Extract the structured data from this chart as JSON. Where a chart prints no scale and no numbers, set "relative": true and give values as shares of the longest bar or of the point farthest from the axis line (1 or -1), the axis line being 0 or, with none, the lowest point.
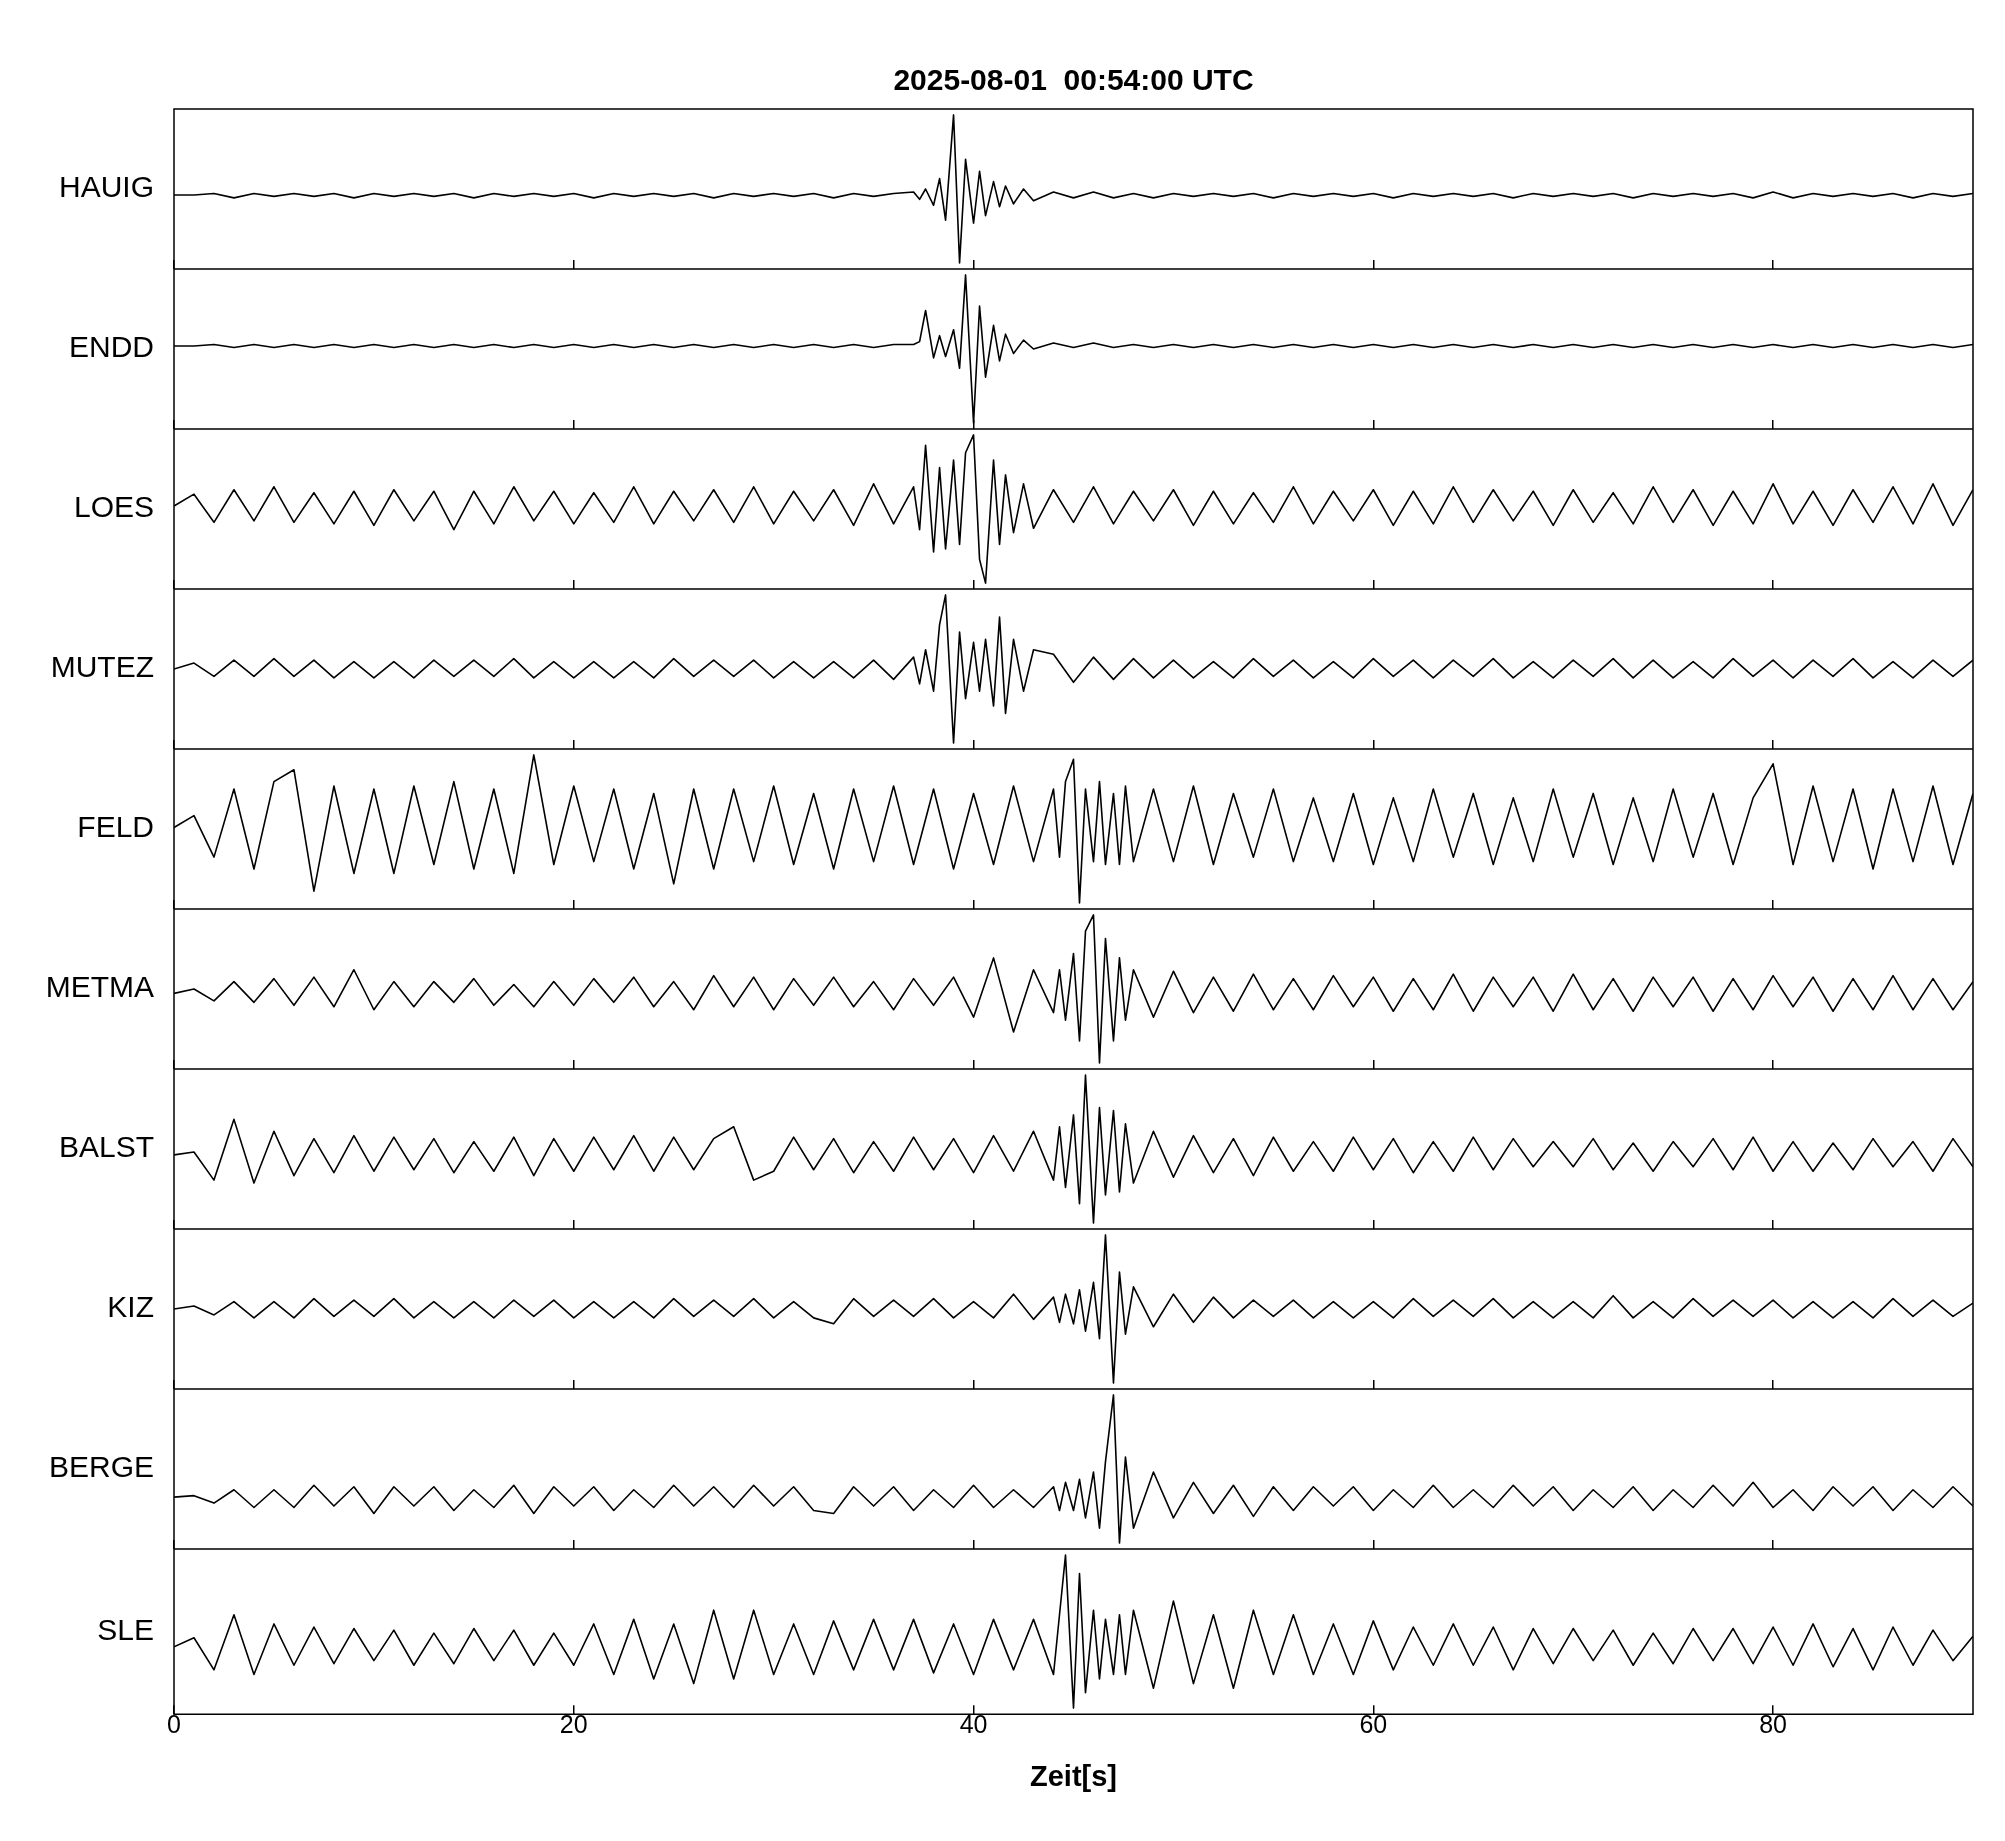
{
  "chart_data": [
    {
      "type": "line",
      "title": "2025-08-01  00:54:00 UTC",
      "ylabel": "HAUIG",
      "color": "#000000",
      "relative": true,
      "xlim": [
        0,
        90
      ],
      "xticks": [
        0,
        20,
        40,
        60,
        80
      ],
      "tick_labels": false,
      "x": [
        0,
        1,
        2,
        3,
        4,
        5,
        6,
        7,
        8,
        9,
        10,
        11,
        12,
        13,
        14,
        15,
        16,
        17,
        18,
        19,
        20,
        21,
        22,
        23,
        24,
        25,
        26,
        27,
        28,
        29,
        30,
        31,
        32,
        33,
        34,
        35,
        36,
        37,
        37.3,
        37.6,
        38,
        38.3,
        38.6,
        39,
        39.3,
        39.6,
        40,
        40.3,
        40.6,
        41,
        41.3,
        41.6,
        42,
        42.5,
        43,
        44,
        45,
        46,
        47,
        48,
        49,
        50,
        51,
        52,
        53,
        54,
        55,
        56,
        57,
        58,
        59,
        60,
        61,
        62,
        63,
        64,
        65,
        66,
        67,
        68,
        69,
        70,
        71,
        72,
        73,
        74,
        75,
        76,
        77,
        78,
        79,
        80,
        81,
        82,
        83,
        84,
        85,
        86,
        87,
        88,
        89,
        90
      ],
      "values": [
        0.46,
        0.46,
        0.47,
        0.44,
        0.47,
        0.45,
        0.47,
        0.45,
        0.47,
        0.44,
        0.47,
        0.45,
        0.47,
        0.45,
        0.47,
        0.44,
        0.47,
        0.45,
        0.47,
        0.45,
        0.47,
        0.44,
        0.47,
        0.45,
        0.47,
        0.45,
        0.47,
        0.44,
        0.47,
        0.45,
        0.47,
        0.45,
        0.47,
        0.44,
        0.47,
        0.45,
        0.47,
        0.48,
        0.43,
        0.5,
        0.39,
        0.57,
        0.29,
        1,
        0,
        0.7,
        0.27,
        0.62,
        0.32,
        0.55,
        0.38,
        0.52,
        0.4,
        0.5,
        0.42,
        0.48,
        0.44,
        0.48,
        0.44,
        0.47,
        0.44,
        0.47,
        0.45,
        0.47,
        0.45,
        0.47,
        0.44,
        0.47,
        0.45,
        0.47,
        0.45,
        0.47,
        0.44,
        0.47,
        0.45,
        0.47,
        0.45,
        0.47,
        0.44,
        0.47,
        0.45,
        0.47,
        0.45,
        0.47,
        0.44,
        0.47,
        0.45,
        0.47,
        0.45,
        0.47,
        0.44,
        0.48,
        0.44,
        0.47,
        0.45,
        0.47,
        0.45,
        0.47,
        0.44,
        0.47,
        0.45,
        0.47
      ]
    },
    {
      "type": "line",
      "ylabel": "ENDD",
      "color": "#000000",
      "relative": true,
      "xlim": [
        0,
        90
      ],
      "xticks": [
        0,
        20,
        40,
        60,
        80
      ],
      "tick_labels": false,
      "x": [
        0,
        1,
        2,
        3,
        4,
        5,
        6,
        7,
        8,
        9,
        10,
        11,
        12,
        13,
        14,
        15,
        16,
        17,
        18,
        19,
        20,
        21,
        22,
        23,
        24,
        25,
        26,
        27,
        28,
        29,
        30,
        31,
        32,
        33,
        34,
        35,
        36,
        37,
        37.3,
        37.6,
        38,
        38.3,
        38.6,
        39,
        39.3,
        39.6,
        40,
        40.3,
        40.6,
        41,
        41.3,
        41.6,
        42,
        42.5,
        43,
        44,
        45,
        46,
        47,
        48,
        49,
        50,
        51,
        52,
        53,
        54,
        55,
        56,
        57,
        58,
        59,
        60,
        61,
        62,
        63,
        64,
        65,
        66,
        67,
        68,
        69,
        70,
        71,
        72,
        73,
        74,
        75,
        76,
        77,
        78,
        79,
        80,
        81,
        82,
        83,
        84,
        85,
        86,
        87,
        88,
        89,
        90
      ],
      "values": [
        0.52,
        0.52,
        0.53,
        0.51,
        0.53,
        0.51,
        0.53,
        0.51,
        0.53,
        0.51,
        0.53,
        0.51,
        0.53,
        0.51,
        0.53,
        0.51,
        0.53,
        0.51,
        0.53,
        0.51,
        0.53,
        0.51,
        0.53,
        0.51,
        0.53,
        0.51,
        0.53,
        0.51,
        0.53,
        0.51,
        0.53,
        0.51,
        0.53,
        0.51,
        0.53,
        0.51,
        0.53,
        0.53,
        0.55,
        0.76,
        0.44,
        0.59,
        0.45,
        0.63,
        0.37,
        1,
        0,
        0.79,
        0.31,
        0.66,
        0.42,
        0.6,
        0.47,
        0.56,
        0.5,
        0.54,
        0.51,
        0.54,
        0.51,
        0.53,
        0.51,
        0.53,
        0.51,
        0.53,
        0.51,
        0.53,
        0.51,
        0.53,
        0.51,
        0.53,
        0.51,
        0.53,
        0.51,
        0.53,
        0.51,
        0.53,
        0.51,
        0.53,
        0.51,
        0.53,
        0.51,
        0.53,
        0.51,
        0.53,
        0.51,
        0.53,
        0.51,
        0.53,
        0.51,
        0.53,
        0.51,
        0.53,
        0.51,
        0.53,
        0.51,
        0.53,
        0.51,
        0.53,
        0.51,
        0.53,
        0.51,
        0.53
      ]
    },
    {
      "type": "line",
      "ylabel": "LOES",
      "color": "#000000",
      "relative": true,
      "xlim": [
        0,
        90
      ],
      "xticks": [
        0,
        20,
        40,
        60,
        80
      ],
      "tick_labels": false,
      "x": [
        0,
        1,
        2,
        3,
        4,
        5,
        6,
        7,
        8,
        9,
        10,
        11,
        12,
        13,
        14,
        15,
        16,
        17,
        18,
        19,
        20,
        21,
        22,
        23,
        24,
        25,
        26,
        27,
        28,
        29,
        30,
        31,
        32,
        33,
        34,
        35,
        36,
        37,
        37.3,
        37.6,
        38,
        38.3,
        38.6,
        39,
        39.3,
        39.6,
        40,
        40.3,
        40.6,
        41,
        41.3,
        41.6,
        42,
        42.5,
        43,
        44,
        45,
        46,
        47,
        48,
        49,
        50,
        51,
        52,
        53,
        54,
        55,
        56,
        57,
        58,
        59,
        60,
        61,
        62,
        63,
        64,
        65,
        66,
        67,
        68,
        69,
        70,
        71,
        72,
        73,
        74,
        75,
        76,
        77,
        78,
        79,
        80,
        81,
        82,
        83,
        84,
        85,
        86,
        87,
        88,
        89,
        90
      ],
      "values": [
        0.52,
        0.6,
        0.41,
        0.63,
        0.42,
        0.65,
        0.41,
        0.61,
        0.4,
        0.62,
        0.39,
        0.63,
        0.42,
        0.62,
        0.36,
        0.62,
        0.4,
        0.65,
        0.42,
        0.62,
        0.4,
        0.61,
        0.41,
        0.65,
        0.4,
        0.62,
        0.42,
        0.63,
        0.41,
        0.65,
        0.4,
        0.62,
        0.42,
        0.63,
        0.39,
        0.67,
        0.4,
        0.65,
        0.36,
        0.93,
        0.21,
        0.78,
        0.23,
        0.83,
        0.26,
        0.88,
        1,
        0.16,
        0,
        0.83,
        0.26,
        0.73,
        0.34,
        0.67,
        0.37,
        0.63,
        0.41,
        0.65,
        0.4,
        0.62,
        0.42,
        0.63,
        0.39,
        0.62,
        0.4,
        0.61,
        0.41,
        0.65,
        0.4,
        0.62,
        0.42,
        0.63,
        0.39,
        0.62,
        0.4,
        0.65,
        0.41,
        0.63,
        0.42,
        0.62,
        0.39,
        0.63,
        0.41,
        0.61,
        0.4,
        0.65,
        0.41,
        0.63,
        0.39,
        0.62,
        0.4,
        0.67,
        0.4,
        0.62,
        0.39,
        0.63,
        0.41,
        0.65,
        0.4,
        0.67,
        0.39,
        0.63
      ]
    },
    {
      "type": "line",
      "ylabel": "MUTEZ",
      "color": "#000000",
      "relative": true,
      "xlim": [
        0,
        90
      ],
      "xticks": [
        0,
        20,
        40,
        60,
        80
      ],
      "tick_labels": false,
      "x": [
        0,
        1,
        2,
        3,
        4,
        5,
        6,
        7,
        8,
        9,
        10,
        11,
        12,
        13,
        14,
        15,
        16,
        17,
        18,
        19,
        20,
        21,
        22,
        23,
        24,
        25,
        26,
        27,
        28,
        29,
        30,
        31,
        32,
        33,
        34,
        35,
        36,
        37,
        37.3,
        37.6,
        38,
        38.3,
        38.6,
        39,
        39.3,
        39.6,
        40,
        40.3,
        40.6,
        41,
        41.3,
        41.6,
        42,
        42.5,
        43,
        44,
        45,
        46,
        47,
        48,
        49,
        50,
        51,
        52,
        53,
        54,
        55,
        56,
        57,
        58,
        59,
        60,
        61,
        62,
        63,
        64,
        65,
        66,
        67,
        68,
        69,
        70,
        71,
        72,
        73,
        74,
        75,
        76,
        77,
        78,
        79,
        80,
        81,
        82,
        83,
        84,
        85,
        86,
        87,
        88,
        89,
        90
      ],
      "values": [
        0.5,
        0.54,
        0.45,
        0.56,
        0.45,
        0.57,
        0.45,
        0.56,
        0.44,
        0.55,
        0.44,
        0.55,
        0.44,
        0.56,
        0.45,
        0.56,
        0.45,
        0.57,
        0.44,
        0.55,
        0.44,
        0.55,
        0.44,
        0.55,
        0.44,
        0.57,
        0.45,
        0.56,
        0.45,
        0.56,
        0.44,
        0.55,
        0.44,
        0.55,
        0.44,
        0.56,
        0.43,
        0.58,
        0.4,
        0.63,
        0.35,
        0.8,
        1,
        0,
        0.75,
        0.3,
        0.68,
        0.35,
        0.7,
        0.25,
        0.85,
        0.2,
        0.7,
        0.35,
        0.63,
        0.6,
        0.41,
        0.58,
        0.43,
        0.57,
        0.44,
        0.56,
        0.44,
        0.55,
        0.44,
        0.57,
        0.45,
        0.56,
        0.44,
        0.55,
        0.44,
        0.57,
        0.45,
        0.56,
        0.44,
        0.56,
        0.45,
        0.57,
        0.44,
        0.55,
        0.44,
        0.56,
        0.45,
        0.57,
        0.44,
        0.56,
        0.44,
        0.55,
        0.44,
        0.57,
        0.45,
        0.56,
        0.44,
        0.56,
        0.45,
        0.57,
        0.44,
        0.55,
        0.44,
        0.56,
        0.45,
        0.56
      ]
    },
    {
      "type": "line",
      "ylabel": "FELD",
      "color": "#000000",
      "relative": true,
      "xlim": [
        0,
        90
      ],
      "xticks": [
        0,
        20,
        40,
        60,
        80
      ],
      "tick_labels": false,
      "x": [
        0,
        1,
        2,
        3,
        4,
        5,
        6,
        7,
        8,
        9,
        10,
        11,
        12,
        13,
        14,
        15,
        16,
        17,
        18,
        19,
        20,
        21,
        22,
        23,
        24,
        25,
        26,
        27,
        28,
        29,
        30,
        31,
        32,
        33,
        34,
        35,
        36,
        37,
        38,
        39,
        40,
        41,
        42,
        43,
        44,
        44.3,
        44.6,
        45,
        45.3,
        45.6,
        46,
        46.3,
        46.6,
        47,
        47.3,
        47.6,
        48,
        49,
        50,
        51,
        52,
        53,
        54,
        55,
        56,
        57,
        58,
        59,
        60,
        61,
        62,
        63,
        64,
        65,
        66,
        67,
        68,
        69,
        70,
        71,
        72,
        73,
        74,
        75,
        76,
        77,
        78,
        79,
        80,
        81,
        82,
        83,
        84,
        85,
        86,
        87,
        88,
        89,
        90
      ],
      "values": [
        0.51,
        0.59,
        0.31,
        0.77,
        0.23,
        0.82,
        0.9,
        0.08,
        0.79,
        0.2,
        0.77,
        0.2,
        0.79,
        0.26,
        0.82,
        0.23,
        0.77,
        0.2,
        1,
        0.26,
        0.79,
        0.28,
        0.77,
        0.23,
        0.74,
        0.13,
        0.77,
        0.23,
        0.77,
        0.28,
        0.79,
        0.26,
        0.74,
        0.23,
        0.77,
        0.28,
        0.79,
        0.26,
        0.77,
        0.23,
        0.74,
        0.26,
        0.79,
        0.28,
        0.77,
        0.31,
        0.82,
        0.97,
        0,
        0.77,
        0.28,
        0.82,
        0.26,
        0.74,
        0.26,
        0.79,
        0.28,
        0.77,
        0.28,
        0.79,
        0.26,
        0.74,
        0.31,
        0.77,
        0.28,
        0.71,
        0.28,
        0.74,
        0.26,
        0.71,
        0.28,
        0.77,
        0.31,
        0.74,
        0.26,
        0.71,
        0.28,
        0.77,
        0.31,
        0.74,
        0.26,
        0.71,
        0.28,
        0.77,
        0.31,
        0.74,
        0.26,
        0.71,
        0.94,
        0.26,
        0.79,
        0.28,
        0.77,
        0.23,
        0.77,
        0.28,
        0.79,
        0.26,
        0.74
      ]
    },
    {
      "type": "line",
      "ylabel": "METMA",
      "color": "#000000",
      "relative": true,
      "xlim": [
        0,
        90
      ],
      "xticks": [
        0,
        20,
        40,
        60,
        80
      ],
      "tick_labels": false,
      "x": [
        0,
        1,
        2,
        3,
        4,
        5,
        6,
        7,
        8,
        9,
        10,
        11,
        12,
        13,
        14,
        15,
        16,
        17,
        18,
        19,
        20,
        21,
        22,
        23,
        24,
        25,
        26,
        27,
        28,
        29,
        30,
        31,
        32,
        33,
        34,
        35,
        36,
        37,
        38,
        39,
        40,
        41,
        42,
        43,
        44,
        44.3,
        44.6,
        45,
        45.3,
        45.6,
        46,
        46.3,
        46.6,
        47,
        47.3,
        47.6,
        48,
        49,
        50,
        51,
        52,
        53,
        54,
        55,
        56,
        57,
        58,
        59,
        60,
        61,
        62,
        63,
        64,
        65,
        66,
        67,
        68,
        69,
        70,
        71,
        72,
        73,
        74,
        75,
        76,
        77,
        78,
        79,
        80,
        81,
        82,
        83,
        84,
        85,
        86,
        87,
        88,
        89,
        90
      ],
      "values": [
        0.47,
        0.5,
        0.42,
        0.55,
        0.41,
        0.57,
        0.39,
        0.58,
        0.38,
        0.63,
        0.36,
        0.55,
        0.38,
        0.55,
        0.41,
        0.57,
        0.39,
        0.53,
        0.38,
        0.55,
        0.39,
        0.57,
        0.41,
        0.58,
        0.38,
        0.55,
        0.36,
        0.59,
        0.38,
        0.58,
        0.36,
        0.57,
        0.39,
        0.58,
        0.38,
        0.55,
        0.36,
        0.57,
        0.39,
        0.58,
        0.31,
        0.71,
        0.21,
        0.63,
        0.34,
        0.63,
        0.29,
        0.74,
        0.15,
        0.89,
        1,
        0,
        0.84,
        0.15,
        0.71,
        0.29,
        0.63,
        0.31,
        0.62,
        0.34,
        0.58,
        0.35,
        0.6,
        0.36,
        0.57,
        0.36,
        0.59,
        0.38,
        0.58,
        0.35,
        0.57,
        0.36,
        0.6,
        0.35,
        0.58,
        0.38,
        0.58,
        0.35,
        0.6,
        0.36,
        0.57,
        0.35,
        0.58,
        0.38,
        0.58,
        0.35,
        0.57,
        0.36,
        0.59,
        0.38,
        0.58,
        0.35,
        0.57,
        0.36,
        0.59,
        0.36,
        0.57,
        0.36,
        0.55
      ]
    },
    {
      "type": "line",
      "ylabel": "BALST",
      "color": "#000000",
      "relative": true,
      "xlim": [
        0,
        90
      ],
      "xticks": [
        0,
        20,
        40,
        60,
        80
      ],
      "tick_labels": false,
      "x": [
        0,
        1,
        2,
        3,
        4,
        5,
        6,
        7,
        8,
        9,
        10,
        11,
        12,
        13,
        14,
        15,
        16,
        17,
        18,
        19,
        20,
        21,
        22,
        23,
        24,
        25,
        26,
        27,
        28,
        29,
        30,
        31,
        32,
        33,
        34,
        35,
        36,
        37,
        38,
        39,
        40,
        41,
        42,
        43,
        44,
        44.3,
        44.6,
        45,
        45.3,
        45.6,
        46,
        46.3,
        46.6,
        47,
        47.3,
        47.6,
        48,
        49,
        50,
        51,
        52,
        53,
        54,
        55,
        56,
        57,
        58,
        59,
        60,
        61,
        62,
        63,
        64,
        65,
        66,
        67,
        68,
        69,
        70,
        71,
        72,
        73,
        74,
        75,
        76,
        77,
        78,
        79,
        80,
        81,
        82,
        83,
        84,
        85,
        86,
        87,
        88,
        89,
        90
      ],
      "values": [
        0.46,
        0.48,
        0.29,
        0.7,
        0.27,
        0.62,
        0.32,
        0.57,
        0.34,
        0.59,
        0.35,
        0.58,
        0.36,
        0.57,
        0.34,
        0.55,
        0.35,
        0.58,
        0.32,
        0.57,
        0.35,
        0.58,
        0.36,
        0.59,
        0.35,
        0.58,
        0.36,
        0.57,
        0.65,
        0.29,
        0.35,
        0.58,
        0.36,
        0.57,
        0.34,
        0.55,
        0.35,
        0.58,
        0.36,
        0.57,
        0.34,
        0.59,
        0.35,
        0.62,
        0.29,
        0.65,
        0.24,
        0.73,
        0.13,
        1,
        0,
        0.78,
        0.19,
        0.76,
        0.21,
        0.67,
        0.27,
        0.62,
        0.31,
        0.59,
        0.34,
        0.57,
        0.32,
        0.58,
        0.35,
        0.55,
        0.35,
        0.58,
        0.36,
        0.57,
        0.34,
        0.55,
        0.35,
        0.58,
        0.36,
        0.57,
        0.38,
        0.55,
        0.38,
        0.57,
        0.36,
        0.54,
        0.35,
        0.55,
        0.38,
        0.57,
        0.36,
        0.58,
        0.35,
        0.55,
        0.35,
        0.54,
        0.36,
        0.57,
        0.38,
        0.55,
        0.35,
        0.57,
        0.38
      ]
    },
    {
      "type": "line",
      "ylabel": "KIZ",
      "color": "#000000",
      "relative": true,
      "xlim": [
        0,
        90
      ],
      "xticks": [
        0,
        20,
        40,
        60,
        80
      ],
      "tick_labels": false,
      "x": [
        0,
        1,
        2,
        3,
        4,
        5,
        6,
        7,
        8,
        9,
        10,
        11,
        12,
        13,
        14,
        15,
        16,
        17,
        18,
        19,
        20,
        21,
        22,
        23,
        24,
        25,
        26,
        27,
        28,
        29,
        30,
        31,
        32,
        33,
        34,
        35,
        36,
        37,
        38,
        39,
        40,
        41,
        42,
        43,
        44,
        44.3,
        44.6,
        45,
        45.3,
        45.6,
        46,
        46.3,
        46.6,
        47,
        47.3,
        47.6,
        48,
        49,
        50,
        51,
        52,
        53,
        54,
        55,
        56,
        57,
        58,
        59,
        60,
        61,
        62,
        63,
        64,
        65,
        66,
        67,
        68,
        69,
        70,
        71,
        72,
        73,
        74,
        75,
        76,
        77,
        78,
        79,
        80,
        81,
        82,
        83,
        84,
        85,
        86,
        87,
        88,
        89,
        90
      ],
      "values": [
        0.5,
        0.52,
        0.46,
        0.55,
        0.44,
        0.55,
        0.44,
        0.57,
        0.45,
        0.56,
        0.45,
        0.57,
        0.44,
        0.55,
        0.44,
        0.55,
        0.44,
        0.56,
        0.45,
        0.56,
        0.44,
        0.55,
        0.44,
        0.55,
        0.44,
        0.57,
        0.45,
        0.56,
        0.45,
        0.57,
        0.44,
        0.55,
        0.44,
        0.4,
        0.57,
        0.45,
        0.56,
        0.45,
        0.57,
        0.44,
        0.55,
        0.44,
        0.6,
        0.43,
        0.58,
        0.41,
        0.6,
        0.4,
        0.63,
        0.35,
        0.68,
        0.3,
        1,
        0,
        0.75,
        0.33,
        0.65,
        0.38,
        0.6,
        0.41,
        0.58,
        0.44,
        0.56,
        0.45,
        0.56,
        0.44,
        0.55,
        0.44,
        0.55,
        0.44,
        0.57,
        0.45,
        0.56,
        0.45,
        0.57,
        0.44,
        0.55,
        0.44,
        0.55,
        0.44,
        0.59,
        0.44,
        0.55,
        0.44,
        0.57,
        0.45,
        0.56,
        0.45,
        0.56,
        0.44,
        0.55,
        0.44,
        0.55,
        0.44,
        0.57,
        0.45,
        0.56,
        0.45,
        0.54
      ]
    },
    {
      "type": "line",
      "ylabel": "BERGE",
      "color": "#000000",
      "relative": true,
      "xlim": [
        0,
        90
      ],
      "xticks": [
        0,
        20,
        40,
        60,
        80
      ],
      "tick_labels": false,
      "x": [
        0,
        1,
        2,
        3,
        4,
        5,
        6,
        7,
        8,
        9,
        10,
        11,
        12,
        13,
        14,
        15,
        16,
        17,
        18,
        19,
        20,
        21,
        22,
        23,
        24,
        25,
        26,
        27,
        28,
        29,
        30,
        31,
        32,
        33,
        34,
        35,
        36,
        37,
        38,
        39,
        40,
        41,
        42,
        43,
        44,
        44.3,
        44.6,
        45,
        45.3,
        45.6,
        46,
        46.3,
        46.6,
        47,
        47.3,
        47.6,
        48,
        49,
        50,
        51,
        52,
        53,
        54,
        55,
        56,
        57,
        58,
        59,
        60,
        61,
        62,
        63,
        64,
        65,
        66,
        67,
        68,
        69,
        70,
        71,
        72,
        73,
        74,
        75,
        76,
        77,
        78,
        79,
        80,
        81,
        82,
        83,
        84,
        85,
        86,
        87,
        88,
        89,
        90
      ],
      "values": [
        0.31,
        0.32,
        0.27,
        0.36,
        0.24,
        0.36,
        0.24,
        0.39,
        0.25,
        0.38,
        0.2,
        0.38,
        0.25,
        0.38,
        0.22,
        0.36,
        0.24,
        0.39,
        0.2,
        0.38,
        0.25,
        0.38,
        0.22,
        0.36,
        0.24,
        0.39,
        0.25,
        0.38,
        0.24,
        0.39,
        0.25,
        0.38,
        0.22,
        0.2,
        0.38,
        0.25,
        0.38,
        0.22,
        0.36,
        0.24,
        0.39,
        0.24,
        0.36,
        0.24,
        0.38,
        0.22,
        0.41,
        0.22,
        0.43,
        0.17,
        0.48,
        0.1,
        0.55,
        1,
        0,
        0.58,
        0.1,
        0.48,
        0.17,
        0.41,
        0.2,
        0.39,
        0.18,
        0.38,
        0.22,
        0.38,
        0.25,
        0.38,
        0.22,
        0.36,
        0.24,
        0.39,
        0.24,
        0.36,
        0.24,
        0.39,
        0.25,
        0.38,
        0.22,
        0.36,
        0.24,
        0.38,
        0.22,
        0.36,
        0.24,
        0.39,
        0.25,
        0.41,
        0.24,
        0.36,
        0.22,
        0.38,
        0.25,
        0.38,
        0.22,
        0.36,
        0.24,
        0.38,
        0.25
      ]
    },
    {
      "type": "line",
      "ylabel": "SLE",
      "xlabel": "Zeit[s]",
      "color": "#000000",
      "relative": true,
      "xlim": [
        0,
        90
      ],
      "xticks": [
        0,
        20,
        40,
        60,
        80
      ],
      "tick_labels": "x",
      "x": [
        0,
        1,
        2,
        3,
        4,
        5,
        6,
        7,
        8,
        9,
        10,
        11,
        12,
        13,
        14,
        15,
        16,
        17,
        18,
        19,
        20,
        21,
        22,
        23,
        24,
        25,
        26,
        27,
        28,
        29,
        30,
        31,
        32,
        33,
        34,
        35,
        36,
        37,
        38,
        39,
        40,
        41,
        42,
        43,
        44,
        44.3,
        44.6,
        45,
        45.3,
        45.6,
        46,
        46.3,
        46.6,
        47,
        47.3,
        47.6,
        48,
        49,
        50,
        51,
        52,
        53,
        54,
        55,
        56,
        57,
        58,
        59,
        60,
        61,
        62,
        63,
        64,
        65,
        66,
        67,
        68,
        69,
        70,
        71,
        72,
        73,
        74,
        75,
        76,
        77,
        78,
        79,
        80,
        81,
        82,
        83,
        84,
        85,
        86,
        87,
        88,
        89,
        90
      ],
      "values": [
        0.4,
        0.46,
        0.25,
        0.61,
        0.22,
        0.55,
        0.28,
        0.53,
        0.29,
        0.52,
        0.31,
        0.51,
        0.28,
        0.49,
        0.29,
        0.52,
        0.31,
        0.51,
        0.28,
        0.49,
        0.28,
        0.55,
        0.22,
        0.58,
        0.19,
        0.55,
        0.16,
        0.64,
        0.19,
        0.64,
        0.22,
        0.55,
        0.22,
        0.57,
        0.25,
        0.58,
        0.25,
        0.58,
        0.23,
        0.55,
        0.22,
        0.58,
        0.25,
        0.58,
        0.22,
        0.61,
        1,
        0,
        0.88,
        0.1,
        0.64,
        0.19,
        0.58,
        0.22,
        0.61,
        0.22,
        0.64,
        0.13,
        0.7,
        0.16,
        0.61,
        0.13,
        0.64,
        0.22,
        0.61,
        0.22,
        0.55,
        0.22,
        0.57,
        0.25,
        0.53,
        0.28,
        0.55,
        0.28,
        0.53,
        0.25,
        0.52,
        0.29,
        0.52,
        0.31,
        0.51,
        0.28,
        0.49,
        0.29,
        0.52,
        0.31,
        0.52,
        0.29,
        0.53,
        0.28,
        0.55,
        0.27,
        0.52,
        0.25,
        0.53,
        0.28,
        0.51,
        0.31,
        0.47
      ]
    }
  ]
}
